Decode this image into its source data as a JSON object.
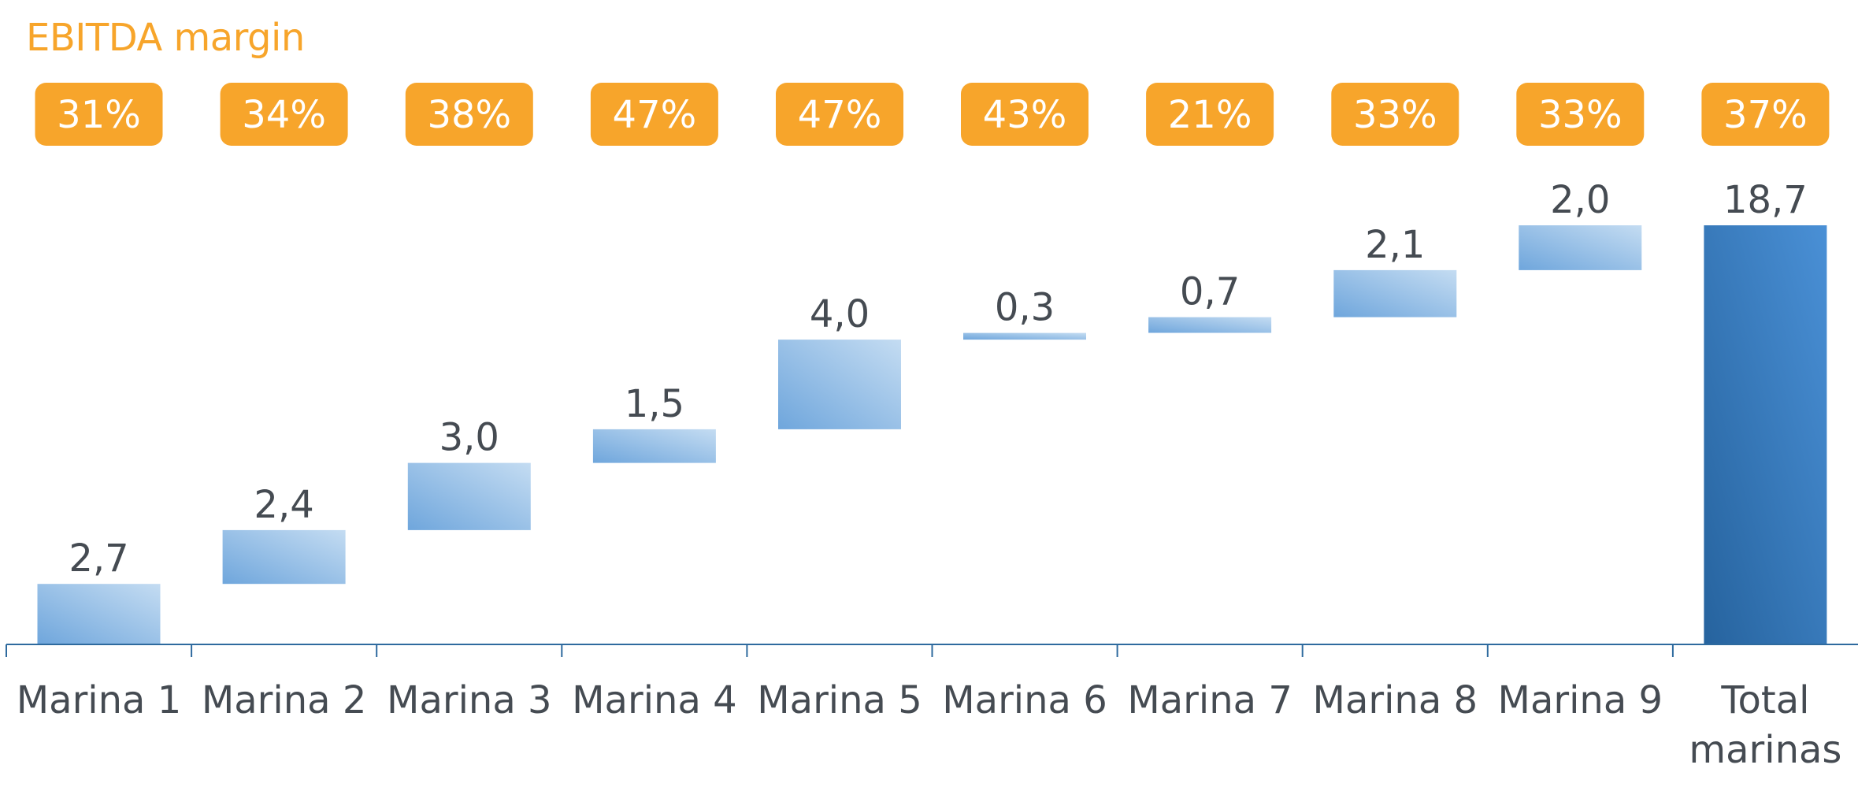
{
  "margin_title": "EBITDA margin",
  "colors": {
    "badge": "#F7A52B",
    "title": "#F7A52B",
    "step_light": "#C4DCF2",
    "step_dark": "#6FA6DC",
    "total_light": "#4A90D6",
    "total_dark": "#26639E",
    "axis": "#2E6A9E",
    "text": "#454B52"
  },
  "chart_data": {
    "type": "waterfall",
    "categories": [
      "Marina 1",
      "Marina 2",
      "Marina 3",
      "Marina 4",
      "Marina 5",
      "Marina 6",
      "Marina 7",
      "Marina 8",
      "Marina 9",
      "Total marinas"
    ],
    "values": [
      2.7,
      2.4,
      3.0,
      1.5,
      4.0,
      0.3,
      0.7,
      2.1,
      2.0,
      18.7
    ],
    "value_labels": [
      "2,7",
      "2,4",
      "3,0",
      "1,5",
      "4,0",
      "0,3",
      "0,7",
      "2,1",
      "2,0",
      "18,7"
    ],
    "total_index": 9,
    "margins": [
      "31%",
      "34%",
      "38%",
      "47%",
      "47%",
      "43%",
      "21%",
      "33%",
      "33%",
      "37%"
    ],
    "ylim": [
      0,
      18.7
    ],
    "grid": false,
    "legend": "none"
  }
}
